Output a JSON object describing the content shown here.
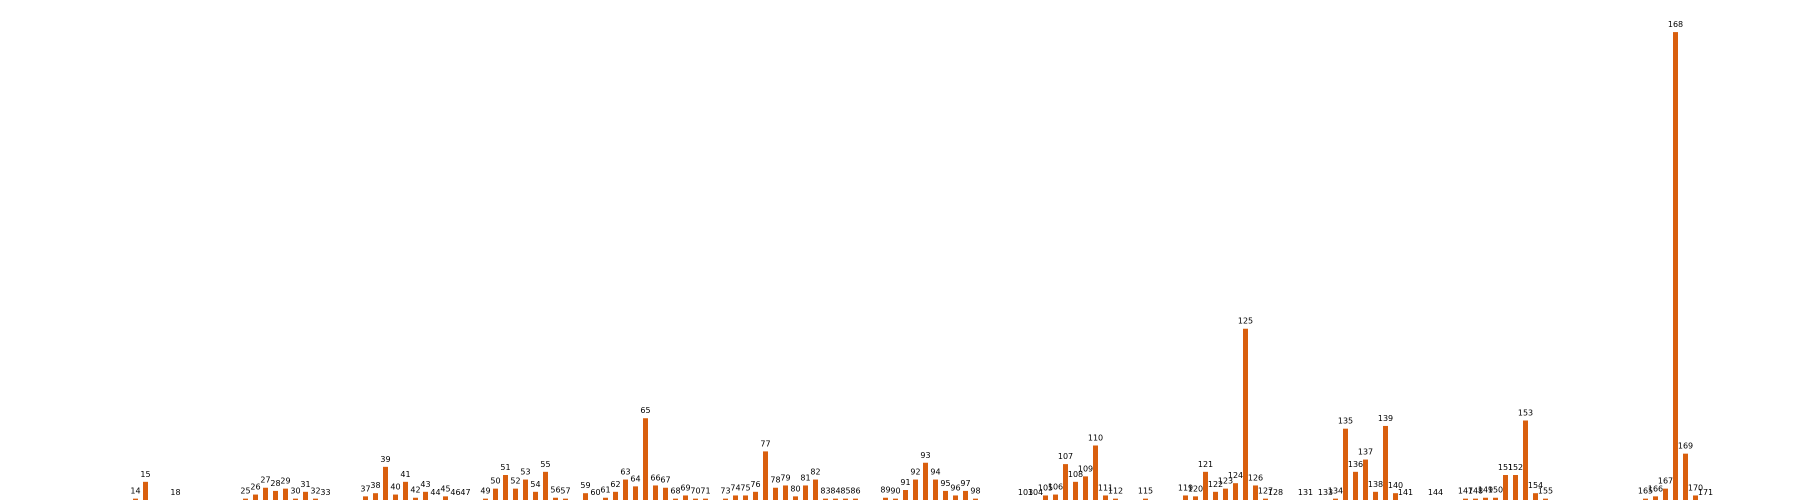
{
  "chart_data": {
    "type": "bar",
    "title": "",
    "xlabel": "",
    "ylabel": "",
    "grid": false,
    "legend": "none",
    "bar_color": "#d95f0e",
    "xlim": [
      1,
      180
    ],
    "ylim": [
      0,
      105
    ],
    "points": [
      {
        "x": 14,
        "label": "14",
        "value": 0.3
      },
      {
        "x": 15,
        "label": "15",
        "value": 4.0
      },
      {
        "x": 18,
        "label": "18",
        "value": 0
      },
      {
        "x": 25,
        "label": "25",
        "value": 0.3
      },
      {
        "x": 26,
        "label": "26",
        "value": 1.2
      },
      {
        "x": 27,
        "label": "27",
        "value": 2.7
      },
      {
        "x": 28,
        "label": "28",
        "value": 2.0
      },
      {
        "x": 29,
        "label": "29",
        "value": 2.5
      },
      {
        "x": 30,
        "label": "30",
        "value": 0.3
      },
      {
        "x": 31,
        "label": "31",
        "value": 1.8
      },
      {
        "x": 32,
        "label": "32",
        "value": 0.3
      },
      {
        "x": 33,
        "label": "33",
        "value": 0
      },
      {
        "x": 37,
        "label": "37",
        "value": 0.8
      },
      {
        "x": 38,
        "label": "38",
        "value": 1.5
      },
      {
        "x": 39,
        "label": "39",
        "value": 7.3
      },
      {
        "x": 40,
        "label": "40",
        "value": 1.2
      },
      {
        "x": 41,
        "label": "41",
        "value": 4.0
      },
      {
        "x": 42,
        "label": "42",
        "value": 0.5
      },
      {
        "x": 43,
        "label": "43",
        "value": 1.8
      },
      {
        "x": 44,
        "label": "44",
        "value": 0
      },
      {
        "x": 45,
        "label": "45",
        "value": 0.8
      },
      {
        "x": 46,
        "label": "46",
        "value": 0
      },
      {
        "x": 47,
        "label": "47",
        "value": 0
      },
      {
        "x": 49,
        "label": "49",
        "value": 0.3
      },
      {
        "x": 50,
        "label": "50",
        "value": 2.5
      },
      {
        "x": 51,
        "label": "51",
        "value": 5.5
      },
      {
        "x": 52,
        "label": "52",
        "value": 2.5
      },
      {
        "x": 53,
        "label": "53",
        "value": 4.5
      },
      {
        "x": 54,
        "label": "54",
        "value": 1.8
      },
      {
        "x": 55,
        "label": "55",
        "value": 6.2
      },
      {
        "x": 56,
        "label": "56",
        "value": 0.5
      },
      {
        "x": 57,
        "label": "57",
        "value": 0.3
      },
      {
        "x": 59,
        "label": "59",
        "value": 1.5
      },
      {
        "x": 60,
        "label": "60",
        "value": 0
      },
      {
        "x": 61,
        "label": "61",
        "value": 0.5
      },
      {
        "x": 62,
        "label": "62",
        "value": 1.8
      },
      {
        "x": 63,
        "label": "63",
        "value": 4.5
      },
      {
        "x": 64,
        "label": "64",
        "value": 3.0
      },
      {
        "x": 65,
        "label": "65",
        "value": 18.0
      },
      {
        "x": 66,
        "label": "66",
        "value": 3.2
      },
      {
        "x": 67,
        "label": "67",
        "value": 2.7
      },
      {
        "x": 68,
        "label": "68",
        "value": 0.3
      },
      {
        "x": 69,
        "label": "69",
        "value": 1.0
      },
      {
        "x": 70,
        "label": "70",
        "value": 0.3
      },
      {
        "x": 71,
        "label": "71",
        "value": 0.3
      },
      {
        "x": 73,
        "label": "73",
        "value": 0.3
      },
      {
        "x": 74,
        "label": "74",
        "value": 1.0
      },
      {
        "x": 75,
        "label": "75",
        "value": 1.0
      },
      {
        "x": 76,
        "label": "76",
        "value": 1.8
      },
      {
        "x": 77,
        "label": "77",
        "value": 10.7
      },
      {
        "x": 78,
        "label": "78",
        "value": 2.7
      },
      {
        "x": 79,
        "label": "79",
        "value": 3.2
      },
      {
        "x": 80,
        "label": "80",
        "value": 0.8
      },
      {
        "x": 81,
        "label": "81",
        "value": 3.2
      },
      {
        "x": 82,
        "label": "82",
        "value": 4.5
      },
      {
        "x": 83,
        "label": "83",
        "value": 0.3
      },
      {
        "x": 84,
        "label": "84",
        "value": 0.3
      },
      {
        "x": 85,
        "label": "85",
        "value": 0.3
      },
      {
        "x": 86,
        "label": "86",
        "value": 0.3
      },
      {
        "x": 89,
        "label": "89",
        "value": 0.5
      },
      {
        "x": 90,
        "label": "90",
        "value": 0.3
      },
      {
        "x": 91,
        "label": "91",
        "value": 2.2
      },
      {
        "x": 92,
        "label": "92",
        "value": 4.5
      },
      {
        "x": 93,
        "label": "93",
        "value": 8.2
      },
      {
        "x": 94,
        "label": "94",
        "value": 4.5
      },
      {
        "x": 95,
        "label": "95",
        "value": 2.0
      },
      {
        "x": 96,
        "label": "96",
        "value": 1.0
      },
      {
        "x": 97,
        "label": "97",
        "value": 2.0
      },
      {
        "x": 98,
        "label": "98",
        "value": 0.3
      },
      {
        "x": 103,
        "label": "103",
        "value": 0
      },
      {
        "x": 104,
        "label": "104",
        "value": 0
      },
      {
        "x": 105,
        "label": "105",
        "value": 1.0
      },
      {
        "x": 106,
        "label": "106",
        "value": 1.2
      },
      {
        "x": 107,
        "label": "107",
        "value": 7.9
      },
      {
        "x": 108,
        "label": "108",
        "value": 4.0
      },
      {
        "x": 109,
        "label": "109",
        "value": 5.2
      },
      {
        "x": 110,
        "label": "110",
        "value": 12.0
      },
      {
        "x": 111,
        "label": "111",
        "value": 1.0
      },
      {
        "x": 112,
        "label": "112",
        "value": 0.3
      },
      {
        "x": 115,
        "label": "115",
        "value": 0.3
      },
      {
        "x": 119,
        "label": "119",
        "value": 1.0
      },
      {
        "x": 120,
        "label": "120",
        "value": 0.8
      },
      {
        "x": 121,
        "label": "121",
        "value": 6.2
      },
      {
        "x": 122,
        "label": "122",
        "value": 1.8
      },
      {
        "x": 123,
        "label": "123",
        "value": 2.5
      },
      {
        "x": 124,
        "label": "124",
        "value": 3.7
      },
      {
        "x": 125,
        "label": "125",
        "value": 37.7
      },
      {
        "x": 126,
        "label": "126",
        "value": 3.2
      },
      {
        "x": 127,
        "label": "127",
        "value": 0.3
      },
      {
        "x": 128,
        "label": "128",
        "value": 0
      },
      {
        "x": 131,
        "label": "131",
        "value": 0
      },
      {
        "x": 133,
        "label": "133",
        "value": 0
      },
      {
        "x": 134,
        "label": "134",
        "value": 0.3
      },
      {
        "x": 135,
        "label": "135",
        "value": 15.7
      },
      {
        "x": 136,
        "label": "136",
        "value": 6.2
      },
      {
        "x": 137,
        "label": "137",
        "value": 8.9
      },
      {
        "x": 138,
        "label": "138",
        "value": 1.8
      },
      {
        "x": 139,
        "label": "139",
        "value": 16.3
      },
      {
        "x": 140,
        "label": "140",
        "value": 1.5
      },
      {
        "x": 141,
        "label": "141",
        "value": 0
      },
      {
        "x": 144,
        "label": "144",
        "value": 0
      },
      {
        "x": 147,
        "label": "147",
        "value": 0.3
      },
      {
        "x": 148,
        "label": "148",
        "value": 0.3
      },
      {
        "x": 149,
        "label": "149",
        "value": 0.5
      },
      {
        "x": 150,
        "label": "150",
        "value": 0.5
      },
      {
        "x": 151,
        "label": "151",
        "value": 5.5
      },
      {
        "x": 152,
        "label": "152",
        "value": 5.5
      },
      {
        "x": 153,
        "label": "153",
        "value": 17.5
      },
      {
        "x": 154,
        "label": "154",
        "value": 1.5
      },
      {
        "x": 155,
        "label": "155",
        "value": 0.3
      },
      {
        "x": 165,
        "label": "165",
        "value": 0.3
      },
      {
        "x": 166,
        "label": "166",
        "value": 0.8
      },
      {
        "x": 167,
        "label": "167",
        "value": 2.5
      },
      {
        "x": 168,
        "label": "168",
        "value": 103.0
      },
      {
        "x": 169,
        "label": "169",
        "value": 10.2
      },
      {
        "x": 170,
        "label": "170",
        "value": 1.0
      },
      {
        "x": 171,
        "label": "171",
        "value": 0
      }
    ]
  }
}
